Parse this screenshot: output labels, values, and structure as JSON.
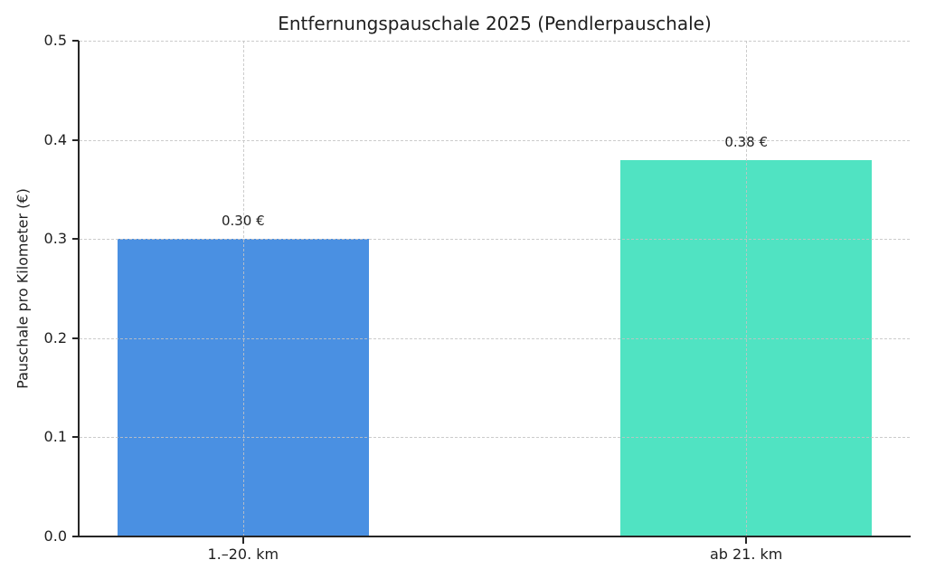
{
  "chart_data": {
    "type": "bar",
    "title": "Entfernungspauschale 2025 (Pendlerpauschale)",
    "categories": [
      "1.–20. km",
      "ab 21. km"
    ],
    "values": [
      0.3,
      0.38
    ],
    "bar_labels": [
      "0.30 €",
      "0.38 €"
    ],
    "bar_colors": [
      "#4a90e2",
      "#50e3c2"
    ],
    "xlabel": "",
    "ylabel": "Pauschale pro Kilometer (€)",
    "ylim": [
      0.0,
      0.5
    ],
    "yticks": [
      0.0,
      0.1,
      0.2,
      0.3,
      0.4,
      0.5
    ],
    "ytick_labels": [
      "0.0",
      "0.1",
      "0.2",
      "0.3",
      "0.4",
      "0.5"
    ],
    "grid": true,
    "grid_style": "dashed",
    "grid_above_bars": true,
    "legend_position": "none",
    "background_color": "#ffffff",
    "spine_color": "#262626",
    "text_color": "#1f1f1f"
  }
}
